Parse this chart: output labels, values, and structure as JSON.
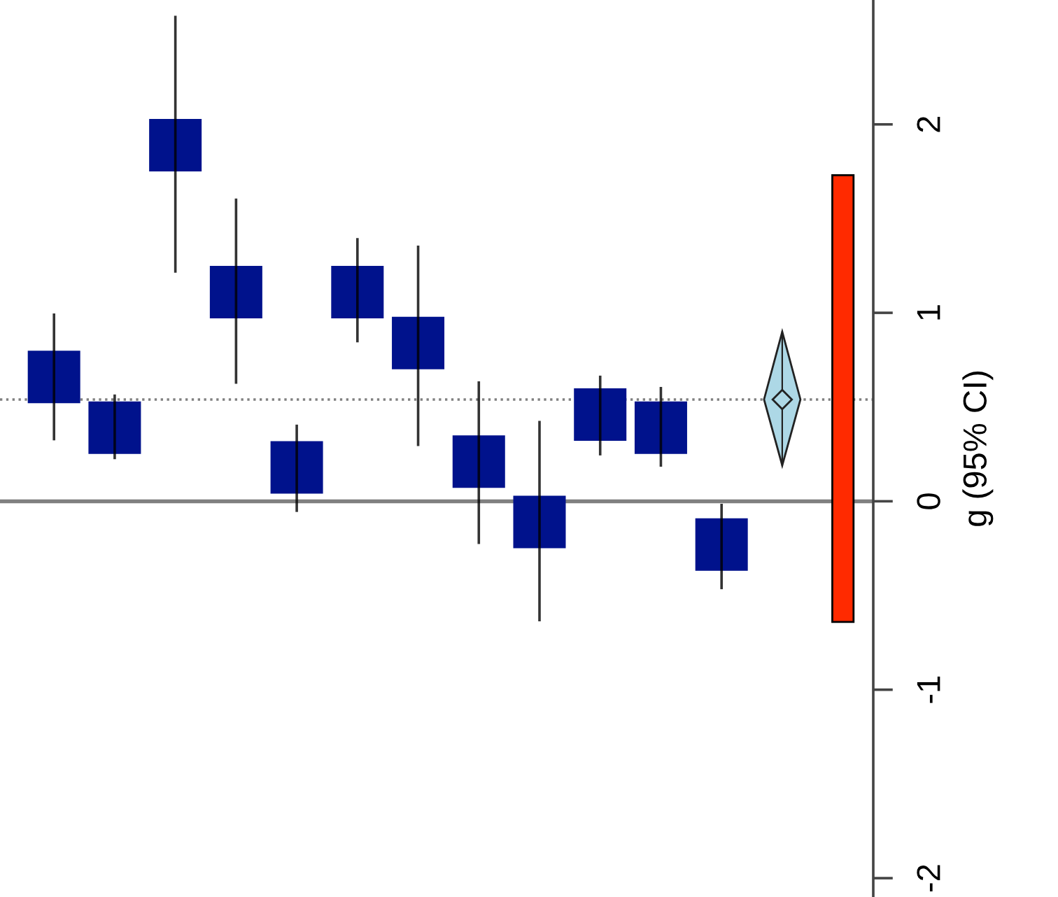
{
  "chart_data": {
    "type": "scatter",
    "ylabel": "g (95% CI)",
    "categories": [
      null,
      null,
      null,
      null,
      null,
      null,
      null,
      null,
      null,
      null,
      null,
      null,
      null,
      null
    ],
    "series": [
      {
        "marker": "square",
        "color": "#00128c",
        "values": [
          0.66,
          0.39,
          1.89,
          1.11,
          0.18,
          1.11,
          0.84,
          0.21,
          -0.11,
          0.46,
          0.39,
          -0.23,
          null,
          null
        ],
        "errors": [
          [
            0.33,
            0.99
          ],
          [
            0.23,
            0.56
          ],
          [
            1.22,
            2.57
          ],
          [
            0.63,
            1.6
          ],
          [
            -0.05,
            0.4
          ],
          [
            0.85,
            1.39
          ],
          [
            0.3,
            1.35
          ],
          [
            -0.22,
            0.63
          ],
          [
            -0.63,
            0.42
          ],
          [
            0.25,
            0.66
          ],
          [
            0.19,
            0.6
          ],
          [
            -0.46,
            -0.02
          ],
          null,
          null
        ]
      },
      {
        "marker": "diamond",
        "color": "#add8e6",
        "values": [
          null,
          null,
          null,
          null,
          null,
          null,
          null,
          null,
          null,
          null,
          null,
          null,
          0.54,
          null
        ],
        "errors": [
          null,
          null,
          null,
          null,
          null,
          null,
          null,
          null,
          null,
          null,
          null,
          null,
          [
            0.19,
            0.9
          ],
          null
        ]
      },
      {
        "type": "bar",
        "color": "#ff2a00",
        "values": [
          null,
          null,
          null,
          null,
          null,
          null,
          null,
          null,
          null,
          null,
          null,
          null,
          null,
          2.37
        ],
        "base": [
          null,
          null,
          null,
          null,
          null,
          null,
          null,
          null,
          null,
          null,
          null,
          null,
          null,
          -0.64
        ]
      }
    ],
    "ylim": [
      -2.1,
      2.66
    ],
    "yticks": [
      -2,
      -1,
      0,
      1,
      2
    ],
    "tick_labels": "y",
    "grid": false,
    "ref_lines": [
      {
        "axis": "y",
        "value": 0,
        "color": "#808080",
        "line_style": "solid"
      },
      {
        "axis": "y",
        "value": 0.54,
        "color": "#808080",
        "line_style": "dotted"
      }
    ]
  }
}
